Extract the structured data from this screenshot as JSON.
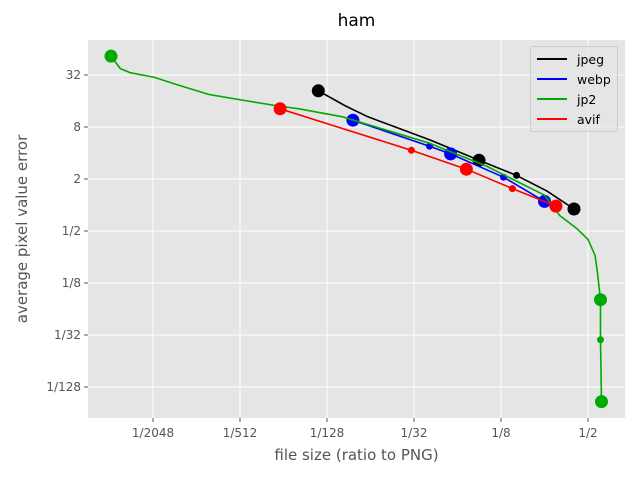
{
  "chart_data": {
    "type": "line",
    "title": "ham",
    "xlabel": "file size (ratio to PNG)",
    "ylabel": "average pixel value error",
    "xscale": "log2",
    "yscale": "log2",
    "x_ticks": [
      "1/2048",
      "1/512",
      "1/128",
      "1/32",
      "1/8",
      "1/2"
    ],
    "y_ticks": [
      "32",
      "8",
      "2",
      "1/2",
      "1/8",
      "1/32",
      "1/128"
    ],
    "grid": true,
    "legend_position": "upper right",
    "series": [
      {
        "name": "jpeg",
        "color": "#000000",
        "points": [
          [
            0.0068,
            21
          ],
          [
            0.0105,
            14
          ],
          [
            0.015,
            10.5
          ],
          [
            0.04,
            5.7
          ],
          [
            0.088,
            3.3
          ],
          [
            0.16,
            2.2
          ],
          [
            0.26,
            1.45
          ],
          [
            0.4,
            0.9
          ]
        ],
        "markers": [
          [
            0.0068,
            21,
            "big"
          ],
          [
            0.088,
            3.3,
            "big"
          ],
          [
            0.16,
            2.2,
            "small"
          ],
          [
            0.4,
            0.9,
            "big"
          ]
        ]
      },
      {
        "name": "webp",
        "color": "#0000ff",
        "points": [
          [
            0.0118,
            9.6
          ],
          [
            0.04,
            4.8
          ],
          [
            0.056,
            3.9
          ],
          [
            0.13,
            2.1
          ],
          [
            0.25,
            1.1
          ]
        ],
        "markers": [
          [
            0.0118,
            9.6,
            "big"
          ],
          [
            0.04,
            4.8,
            "small"
          ],
          [
            0.056,
            3.9,
            "big"
          ],
          [
            0.13,
            2.1,
            "small"
          ],
          [
            0.25,
            1.1,
            "big"
          ]
        ]
      },
      {
        "name": "jp2",
        "color": "#00aa00",
        "points": [
          [
            0.00025,
            53
          ],
          [
            0.00029,
            38
          ],
          [
            0.00034,
            34
          ],
          [
            0.0005,
            30
          ],
          [
            0.0007,
            25
          ],
          [
            0.0012,
            19
          ],
          [
            0.0022,
            16
          ],
          [
            0.0036,
            14
          ],
          [
            0.005,
            13
          ],
          [
            0.01,
            10.5
          ],
          [
            0.04,
            5.2
          ],
          [
            0.1,
            2.8
          ],
          [
            0.25,
            1.3
          ],
          [
            0.32,
            0.75
          ],
          [
            0.42,
            0.53
          ],
          [
            0.5,
            0.4
          ],
          [
            0.56,
            0.26
          ],
          [
            0.58,
            0.17
          ],
          [
            0.61,
            0.08
          ],
          [
            0.61,
            0.0275
          ],
          [
            0.62,
            0.0053
          ]
        ],
        "markers": [
          [
            0.00025,
            53,
            "big"
          ],
          [
            0.61,
            0.08,
            "big"
          ],
          [
            0.61,
            0.0275,
            "small"
          ],
          [
            0.62,
            0.0053,
            "big"
          ]
        ]
      },
      {
        "name": "avif",
        "color": "#ff0000",
        "points": [
          [
            0.0037,
            13
          ],
          [
            0.03,
            4.3
          ],
          [
            0.072,
            2.6
          ],
          [
            0.15,
            1.55
          ],
          [
            0.3,
            0.97
          ]
        ],
        "markers": [
          [
            0.0037,
            13,
            "big"
          ],
          [
            0.03,
            4.3,
            "small"
          ],
          [
            0.072,
            2.6,
            "big"
          ],
          [
            0.15,
            1.55,
            "small"
          ],
          [
            0.3,
            0.97,
            "big"
          ]
        ]
      }
    ]
  },
  "legend": {
    "items": [
      {
        "label": "jpeg",
        "color": "#000000"
      },
      {
        "label": "webp",
        "color": "#0000ff"
      },
      {
        "label": "jp2",
        "color": "#00aa00"
      },
      {
        "label": "avif",
        "color": "#ff0000"
      }
    ]
  }
}
